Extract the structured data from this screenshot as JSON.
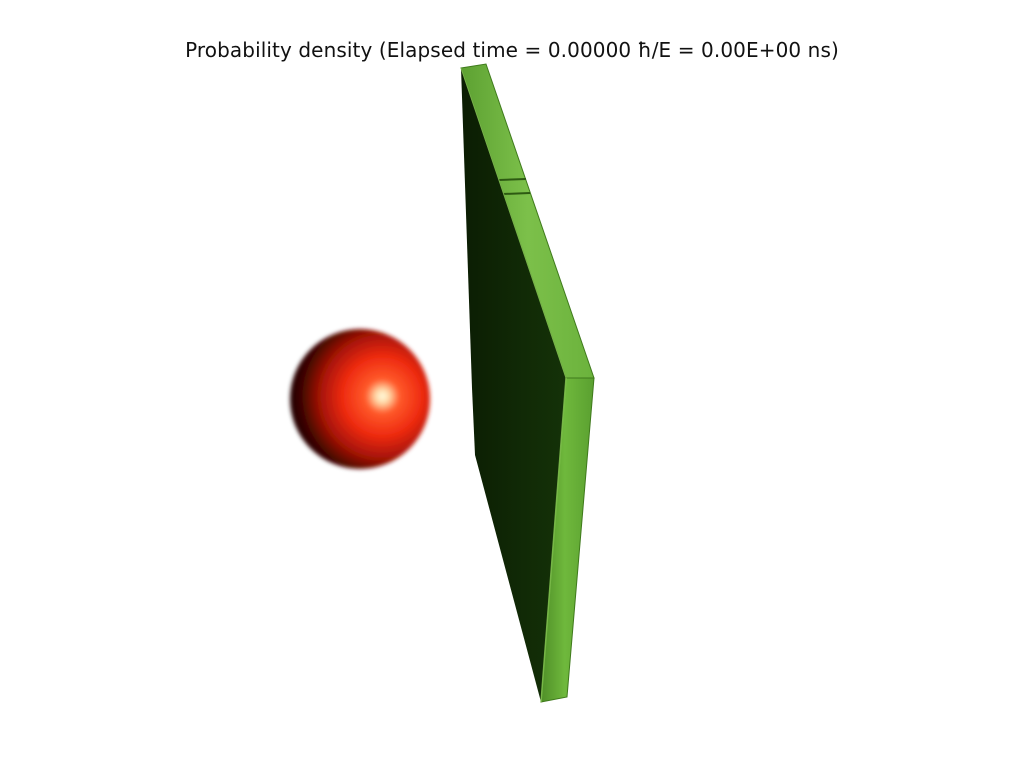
{
  "title": "Probability density (Elapsed time = 0.00000 ħ/E = 0.00E+00 ns)",
  "colors": {
    "background": "#ffffff",
    "wavepacket": "#ff2a10",
    "wavepacket_highlight": "#fffde0",
    "barrier_face": "#6fb83c",
    "barrier_side": "#0f2a05"
  },
  "objects": {
    "wavepacket": "probability-density-sphere",
    "barrier": "potential-barrier-slab"
  }
}
